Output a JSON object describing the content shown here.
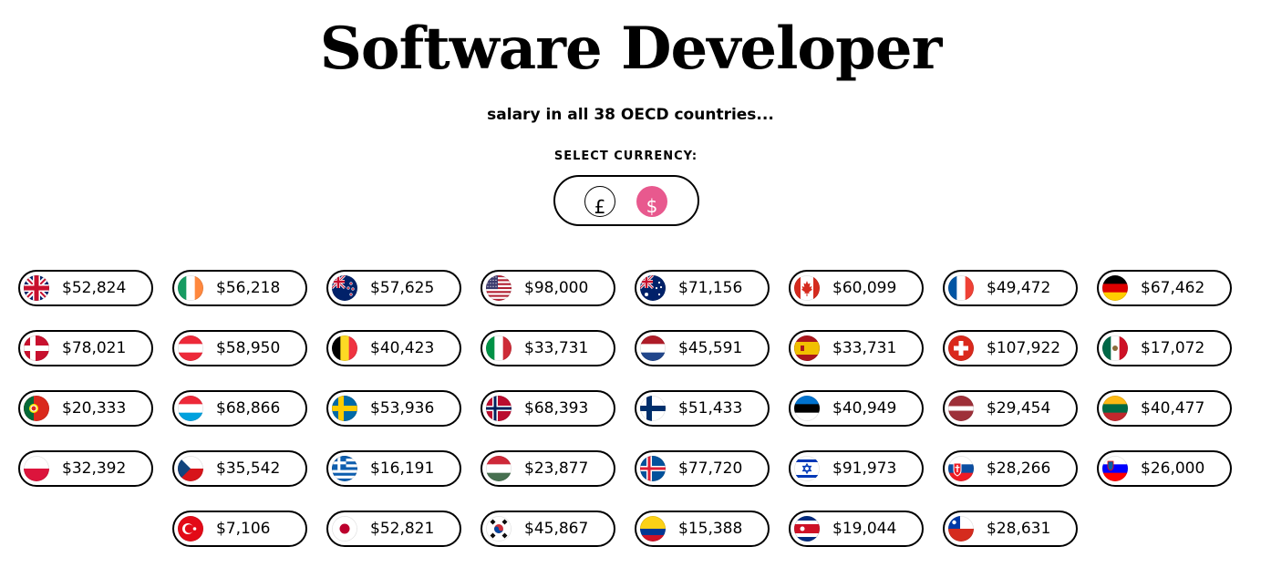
{
  "title": "Software Developer",
  "subtitle": "salary in all 38 OECD countries...",
  "currency_selector": {
    "label": "SELECT CURRENCY:",
    "options": [
      {
        "symbol": "£",
        "code": "GBP",
        "selected": false
      },
      {
        "symbol": "$",
        "code": "USD",
        "selected": true
      }
    ],
    "selected_color": "#e8598e"
  },
  "rows": [
    [
      {
        "flag": "united-kingdom",
        "salary": "$52,824"
      },
      {
        "flag": "ireland",
        "salary": "$56,218"
      },
      {
        "flag": "new-zealand",
        "salary": "$57,625"
      },
      {
        "flag": "united-states",
        "salary": "$98,000"
      },
      {
        "flag": "australia",
        "salary": "$71,156"
      },
      {
        "flag": "canada",
        "salary": "$60,099"
      },
      {
        "flag": "france",
        "salary": "$49,472"
      },
      {
        "flag": "germany",
        "salary": "$67,462"
      }
    ],
    [
      {
        "flag": "denmark",
        "salary": "$78,021"
      },
      {
        "flag": "austria",
        "salary": "$58,950"
      },
      {
        "flag": "belgium",
        "salary": "$40,423"
      },
      {
        "flag": "italy",
        "salary": "$33,731"
      },
      {
        "flag": "netherlands",
        "salary": "$45,591"
      },
      {
        "flag": "spain",
        "salary": "$33,731"
      },
      {
        "flag": "switzerland",
        "salary": "$107,922"
      },
      {
        "flag": "mexico",
        "salary": "$17,072"
      }
    ],
    [
      {
        "flag": "portugal",
        "salary": "$20,333"
      },
      {
        "flag": "luxembourg",
        "salary": "$68,866"
      },
      {
        "flag": "sweden",
        "salary": "$53,936"
      },
      {
        "flag": "norway",
        "salary": "$68,393"
      },
      {
        "flag": "finland",
        "salary": "$51,433"
      },
      {
        "flag": "estonia",
        "salary": "$40,949"
      },
      {
        "flag": "latvia",
        "salary": "$29,454"
      },
      {
        "flag": "lithuania",
        "salary": "$40,477"
      }
    ],
    [
      {
        "flag": "poland",
        "salary": "$32,392"
      },
      {
        "flag": "czech-republic",
        "salary": "$35,542"
      },
      {
        "flag": "greece",
        "salary": "$16,191"
      },
      {
        "flag": "hungary",
        "salary": "$23,877"
      },
      {
        "flag": "iceland",
        "salary": "$77,720"
      },
      {
        "flag": "israel",
        "salary": "$91,973"
      },
      {
        "flag": "slovakia",
        "salary": "$28,266"
      },
      {
        "flag": "slovenia",
        "salary": "$26,000"
      }
    ],
    [
      {
        "flag": "turkey",
        "salary": "$7,106"
      },
      {
        "flag": "japan",
        "salary": "$52,821"
      },
      {
        "flag": "south-korea",
        "salary": "$45,867"
      },
      {
        "flag": "colombia",
        "salary": "$15,388"
      },
      {
        "flag": "costa-rica",
        "salary": "$19,044"
      },
      {
        "flag": "chile",
        "salary": "$28,631"
      }
    ]
  ]
}
